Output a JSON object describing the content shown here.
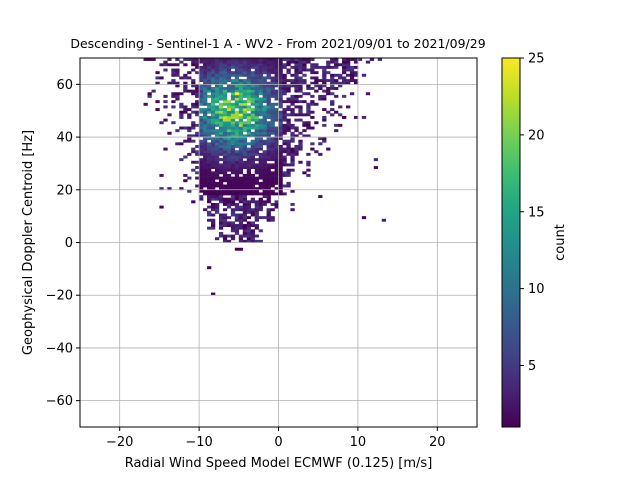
{
  "chart_data": {
    "type": "heatmap",
    "title": "Descending - Sentinel-1 A - WV2 - From 2021/09/01 to 2021/09/29",
    "xlabel": "Radial Wind Speed Model ECMWF (0.125) [m/s]",
    "ylabel": "Geophysical Doppler Centroid [Hz]",
    "xlim": [
      -25,
      25
    ],
    "ylim": [
      -70,
      70
    ],
    "xticks": [
      -20,
      -10,
      0,
      10,
      20
    ],
    "yticks": [
      -60,
      -40,
      -20,
      0,
      20,
      40,
      60
    ],
    "xtick_labels": [
      "−20",
      "−10",
      "0",
      "10",
      "20"
    ],
    "ytick_labels": [
      "−60",
      "−40",
      "−20",
      "0",
      "20",
      "40",
      "60"
    ],
    "grid": true,
    "colormap": "viridis",
    "colorbar": {
      "label": "count",
      "range": [
        1,
        25
      ],
      "ticks": [
        5,
        10,
        15,
        20,
        25
      ],
      "tick_labels": [
        "5",
        "10",
        "15",
        "20",
        "25"
      ]
    },
    "bin_size": {
      "x": 0.5,
      "y": 1
    },
    "distribution": {
      "x_range": [
        -17,
        14
      ],
      "y_range": [
        -19,
        70
      ],
      "peak": {
        "x": -5.5,
        "y": 50,
        "count": 25
      },
      "note": "dense block x -10 to 0, y 20 to 70; sparse tails"
    }
  }
}
